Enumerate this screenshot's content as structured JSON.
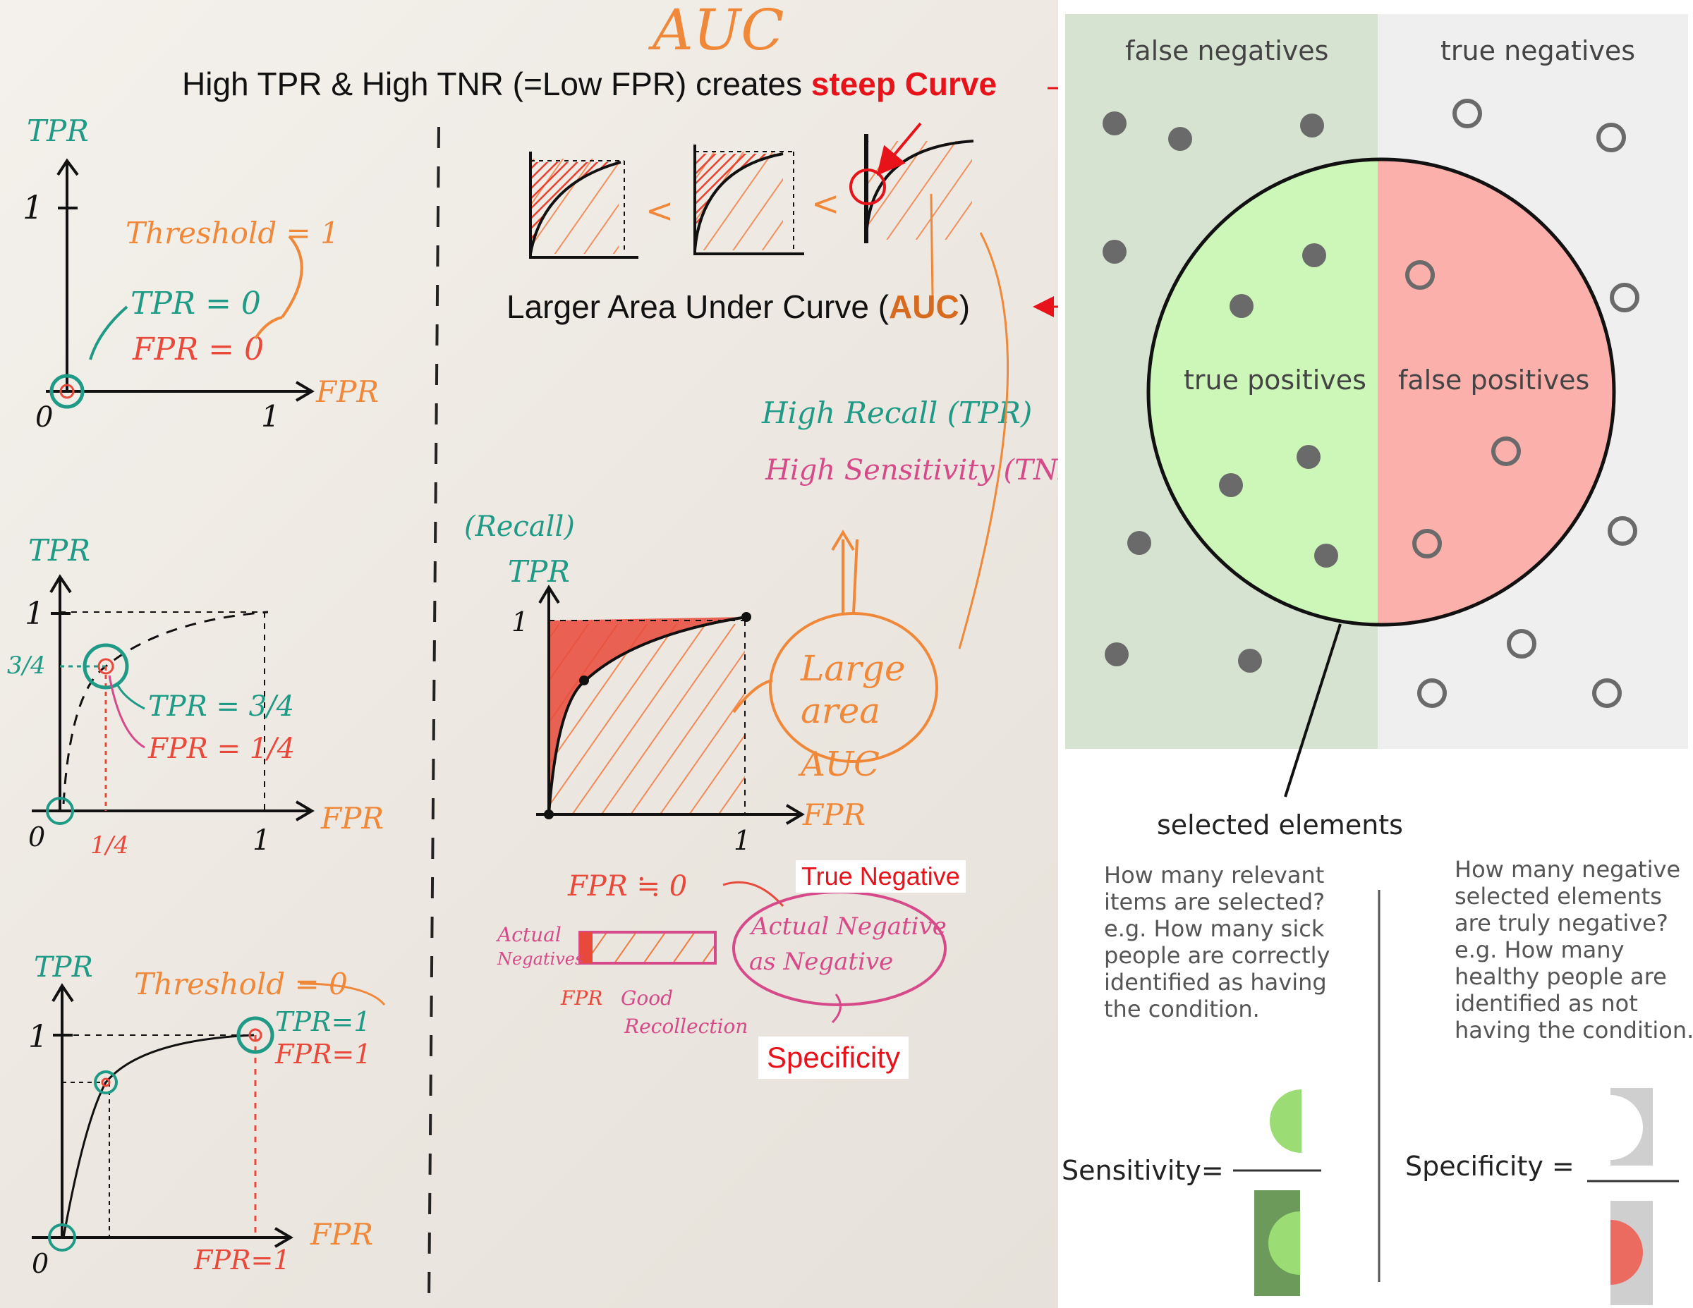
{
  "whiteboard": {
    "title": "AUC",
    "heading_prefix": "High TPR & High TNR (=Low FPR) creates ",
    "heading_emphasis": "steep Curve",
    "auc_label_prefix": "Larger Area Under Curve (",
    "auc_label_emphasis": "AUC",
    "auc_label_suffix": ")",
    "less_than": "<",
    "graph1": {
      "y_axis": "TPR",
      "x_axis": "FPR",
      "y_one": "1",
      "x_one": "1",
      "origin": "0",
      "threshold": "Threshold = 1",
      "tpr": "TPR = 0",
      "fpr": "FPR = 0"
    },
    "graph2": {
      "y_axis": "TPR",
      "x_axis": "FPR",
      "y_one": "1",
      "y_34": "3/4",
      "x_14": "1/4",
      "x_one": "1",
      "origin": "0",
      "tpr": "TPR = 3/4",
      "fpr": "FPR = 1/4"
    },
    "graph3": {
      "y_axis": "TPR",
      "x_axis": "FPR",
      "y_one": "1",
      "origin": "0",
      "threshold": "Threshold = 0",
      "tpr": "TPR=1",
      "fpr": "FPR=1",
      "fpr_bottom": "FPR=1"
    },
    "recall_graph": {
      "recall": "(Recall)",
      "y_axis": "TPR",
      "x_axis": "FPR",
      "y_one": "1",
      "x_one": "1",
      "high_recall": "High Recall (TPR)",
      "high_sensitivity": "High Sensitivity (TNR)",
      "large_area": [
        "Large",
        "area"
      ],
      "auc": "AUC"
    },
    "fpr_note": "FPR ≒ 0",
    "true_negative_tag": "True Negative",
    "actual_negative": [
      "Actual Negative",
      "as Negative"
    ],
    "actual_negatives": [
      "Actual",
      "Negatives"
    ],
    "fpr_small": "FPR",
    "good_recollection": [
      "Good",
      "Recollection"
    ],
    "specificity_tag": "Specificity"
  },
  "venn": {
    "false_negatives": "false negatives",
    "true_negatives": "true negatives",
    "true_positives": "true positives",
    "false_positives": "false positives",
    "selected_elements": "selected elements"
  },
  "sensitivity_text": [
    "How many relevant",
    "items are selected?",
    "e.g. How many sick",
    "people are correctly",
    "identified as having",
    "the condition."
  ],
  "specificity_text": [
    "How many negative",
    "selected elements",
    "are truly negative?",
    "e.g. How many",
    "healthy people are",
    "identified as not",
    "having the condition."
  ],
  "formulas": {
    "sensitivity": "Sensitivity=",
    "specificity": "Specificity ="
  },
  "colors": {
    "teal": "#1e9a86",
    "orange": "#f0883a",
    "red": "#e9493a",
    "pink": "#d64a8a",
    "green_region": "#d6e3d0",
    "grey_region": "#efefef",
    "tp_fill": "#cdf7b8",
    "fp_fill": "#fbb0ab"
  }
}
